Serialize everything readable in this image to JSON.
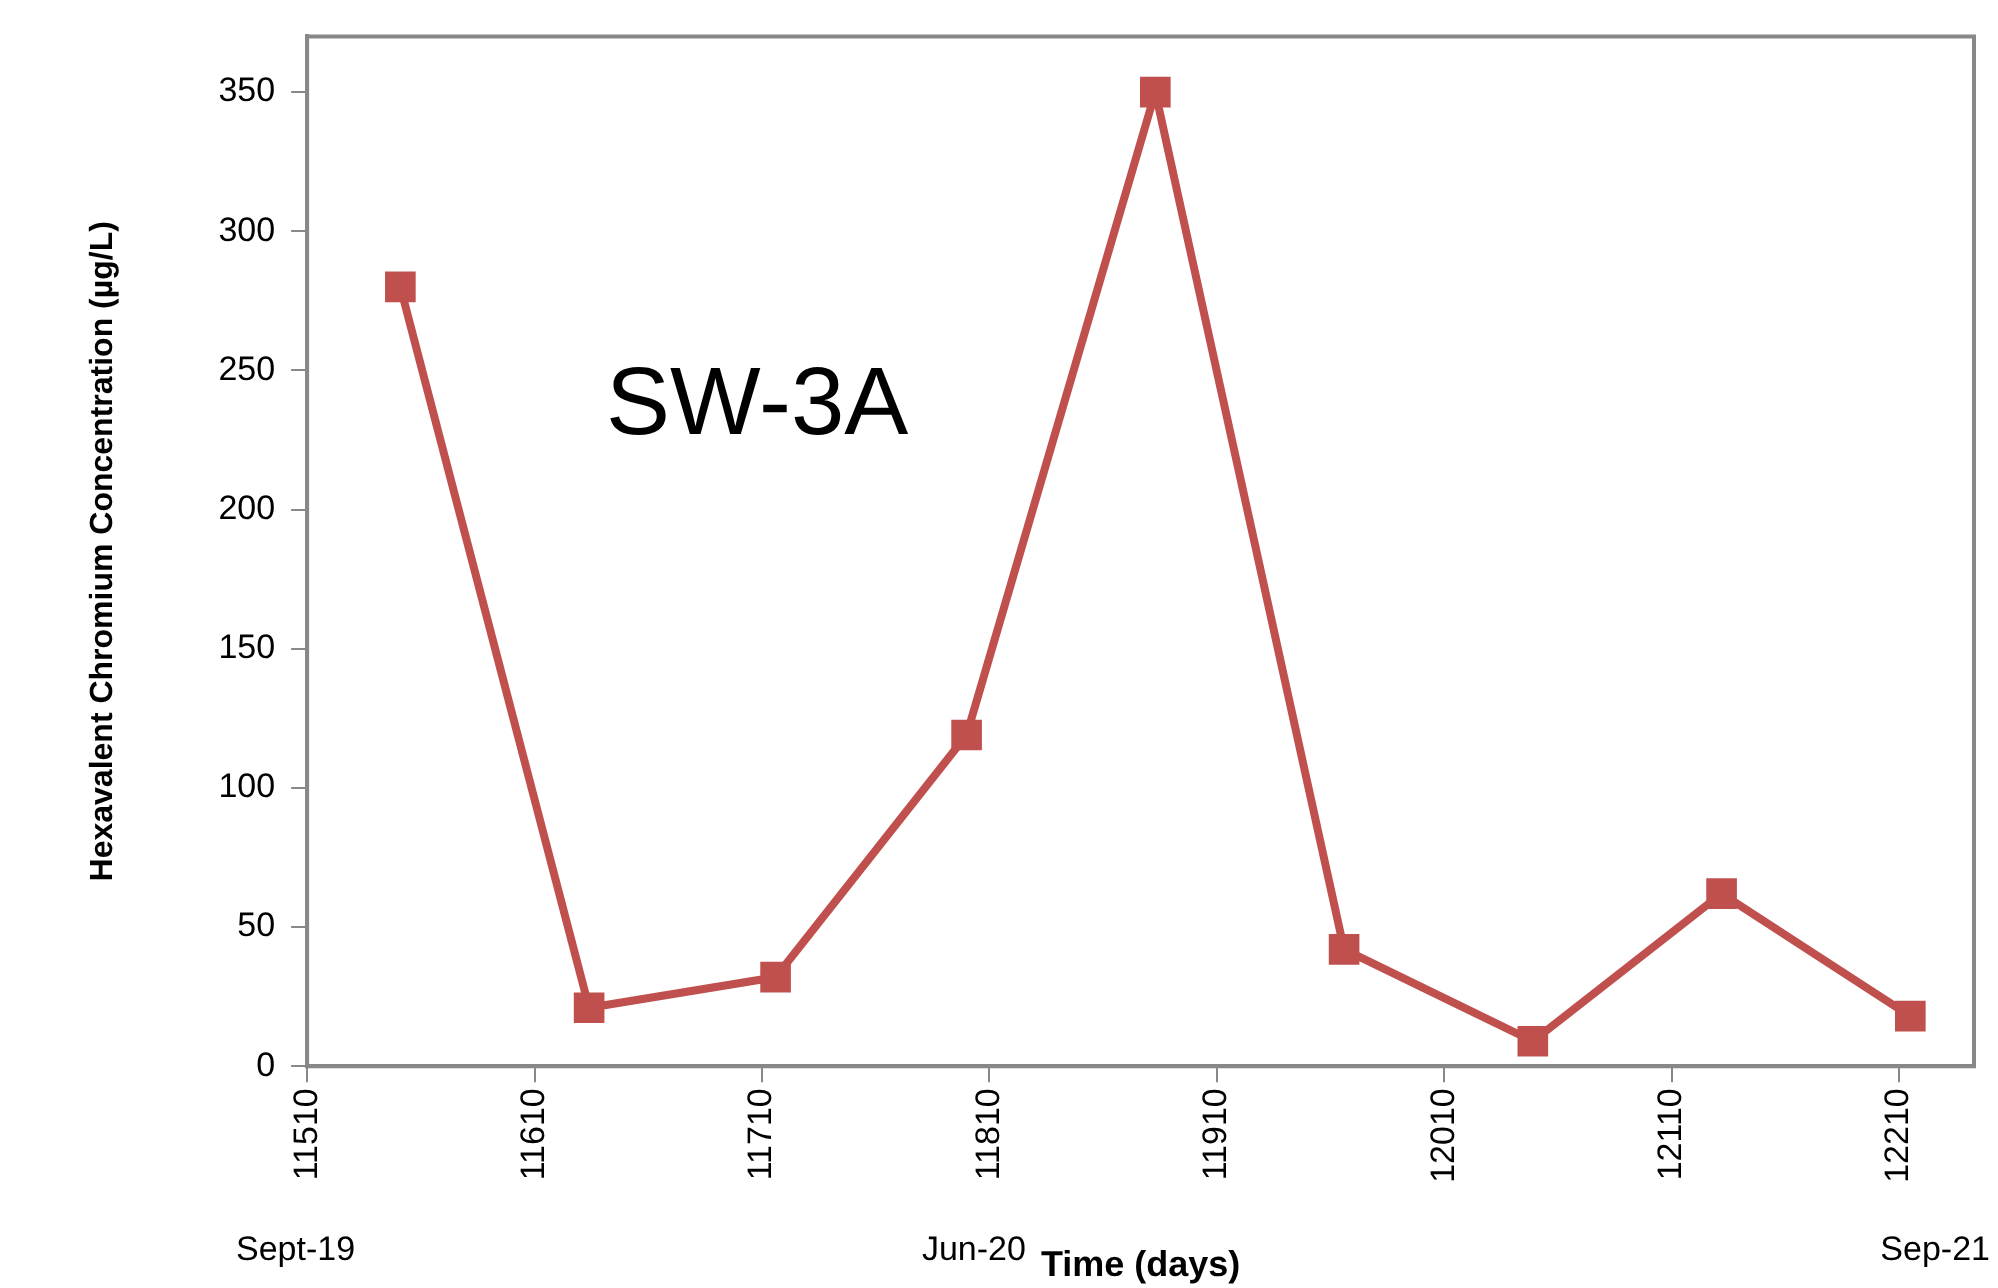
{
  "chart_data": {
    "type": "line",
    "xlabel": "Time (days)",
    "ylabel": "Hexavalent Chromium Concentration (µg/L)",
    "x": [
      11551,
      11634,
      11716,
      11800,
      11883,
      11966,
      12049,
      12132,
      12215
    ],
    "series": [
      {
        "color": "#c0504d",
        "values": [
          280,
          21,
          32,
          119,
          350,
          42,
          9,
          62,
          18
        ]
      }
    ],
    "xlim": [
      11510,
      12243
    ],
    "xticks": [
      11510,
      11610,
      11710,
      11810,
      11910,
      12010,
      12110,
      12210
    ],
    "ylim": [
      0,
      370
    ],
    "yticks": [
      0,
      50,
      100,
      150,
      200,
      250,
      300,
      350
    ],
    "grid": false,
    "legend": false,
    "marker": "square",
    "line_style": "solid",
    "annotations": [
      "SW-3A",
      "Sept-19",
      "Jun-20",
      "Sep-21"
    ]
  }
}
